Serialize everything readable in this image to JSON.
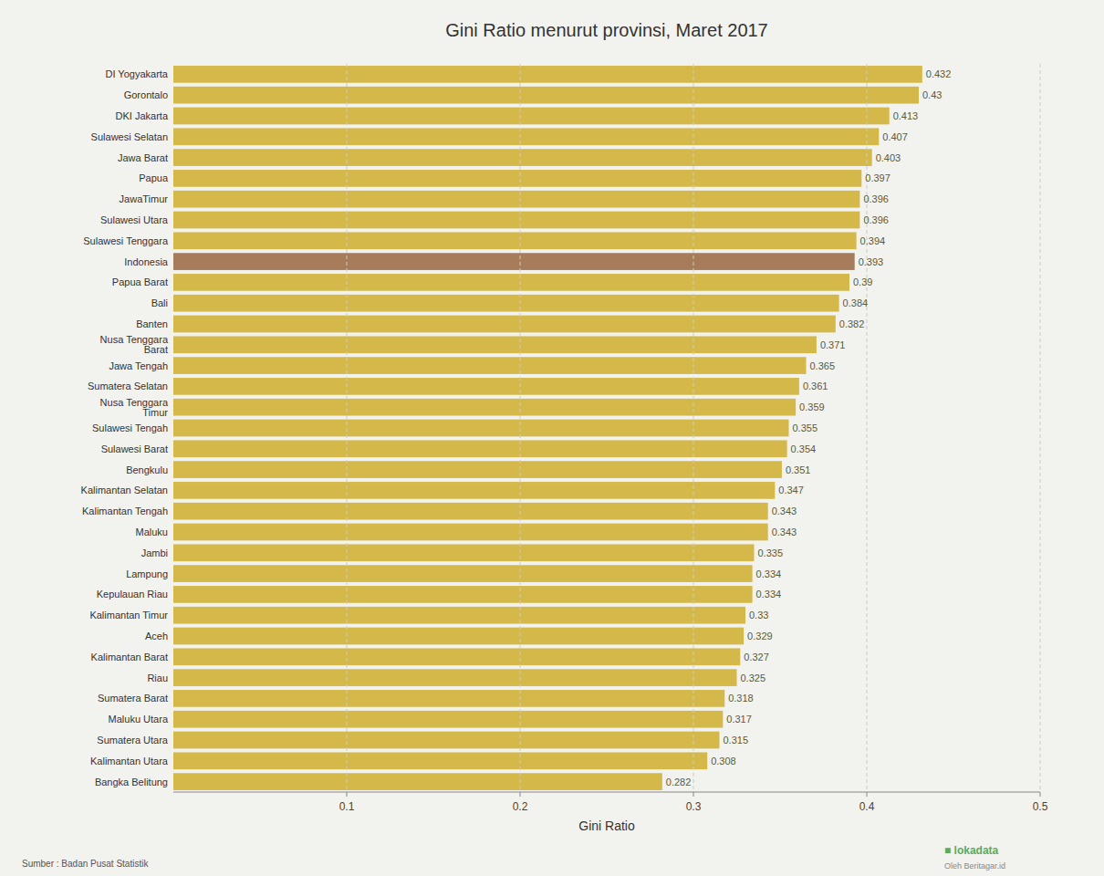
{
  "chart_data": {
    "type": "bar",
    "orientation": "horizontal",
    "title": "Gini Ratio menurut provinsi, Maret 2017",
    "x_label": "Gini Ratio",
    "categories": [
      "DI Yogyakarta",
      "Gorontalo",
      "DKI Jakarta",
      "Sulawesi Selatan",
      "Jawa Barat",
      "Papua",
      "JawaTimur",
      "Sulawesi Utara",
      "Sulawesi Tenggara",
      "Indonesia",
      "Papua Barat",
      "Bali",
      "Banten",
      "Nusa Tenggara\nBarat",
      "Jawa Tengah",
      "Sumatera Selatan",
      "Nusa Tenggara\nTimur",
      "Sulawesi Tengah",
      "Sulawesi Barat",
      "Bengkulu",
      "Kalimantan Selatan",
      "Kalimantan Tengah",
      "Maluku",
      "Jambi",
      "Lampung",
      "Kepulauan Riau",
      "Kalimantan Timur",
      "Aceh",
      "Kalimantan Barat",
      "Riau",
      "Sumatera Barat",
      "Maluku Utara",
      "Sumatera Utara",
      "Kalimantan Utara",
      "Bangka Belitung"
    ],
    "values": [
      0.432,
      0.43,
      0.413,
      0.407,
      0.403,
      0.397,
      0.396,
      0.396,
      0.394,
      0.393,
      0.39,
      0.384,
      0.382,
      0.371,
      0.365,
      0.361,
      0.359,
      0.355,
      0.354,
      0.351,
      0.347,
      0.343,
      0.343,
      0.335,
      0.334,
      0.334,
      0.33,
      0.329,
      0.327,
      0.325,
      0.318,
      0.317,
      0.315,
      0.308,
      0.282
    ],
    "colors": [
      "#D4B84A",
      "#D4B84A",
      "#D4B84A",
      "#D4B84A",
      "#D4B84A",
      "#D4B84A",
      "#D4B84A",
      "#D4B84A",
      "#D4B84A",
      "#A67C5B",
      "#D4B84A",
      "#D4B84A",
      "#D4B84A",
      "#D4B84A",
      "#D4B84A",
      "#D4B84A",
      "#D4B84A",
      "#D4B84A",
      "#D4B84A",
      "#D4B84A",
      "#D4B84A",
      "#D4B84A",
      "#D4B84A",
      "#D4B84A",
      "#D4B84A",
      "#D4B84A",
      "#D4B84A",
      "#D4B84A",
      "#D4B84A",
      "#D4B84A",
      "#D4B84A",
      "#D4B84A",
      "#D4B84A",
      "#D4B84A",
      "#D4B84A"
    ],
    "xlim": [
      0,
      0.5
    ],
    "xticks": [
      0.1,
      0.2,
      0.3,
      0.4,
      0.5
    ],
    "grid": true,
    "data_labels": true,
    "annotations": [
      "Sumber : Badan Pusat Statistik",
      "■ lokadata",
      "Oleh Beritagar.id"
    ]
  }
}
